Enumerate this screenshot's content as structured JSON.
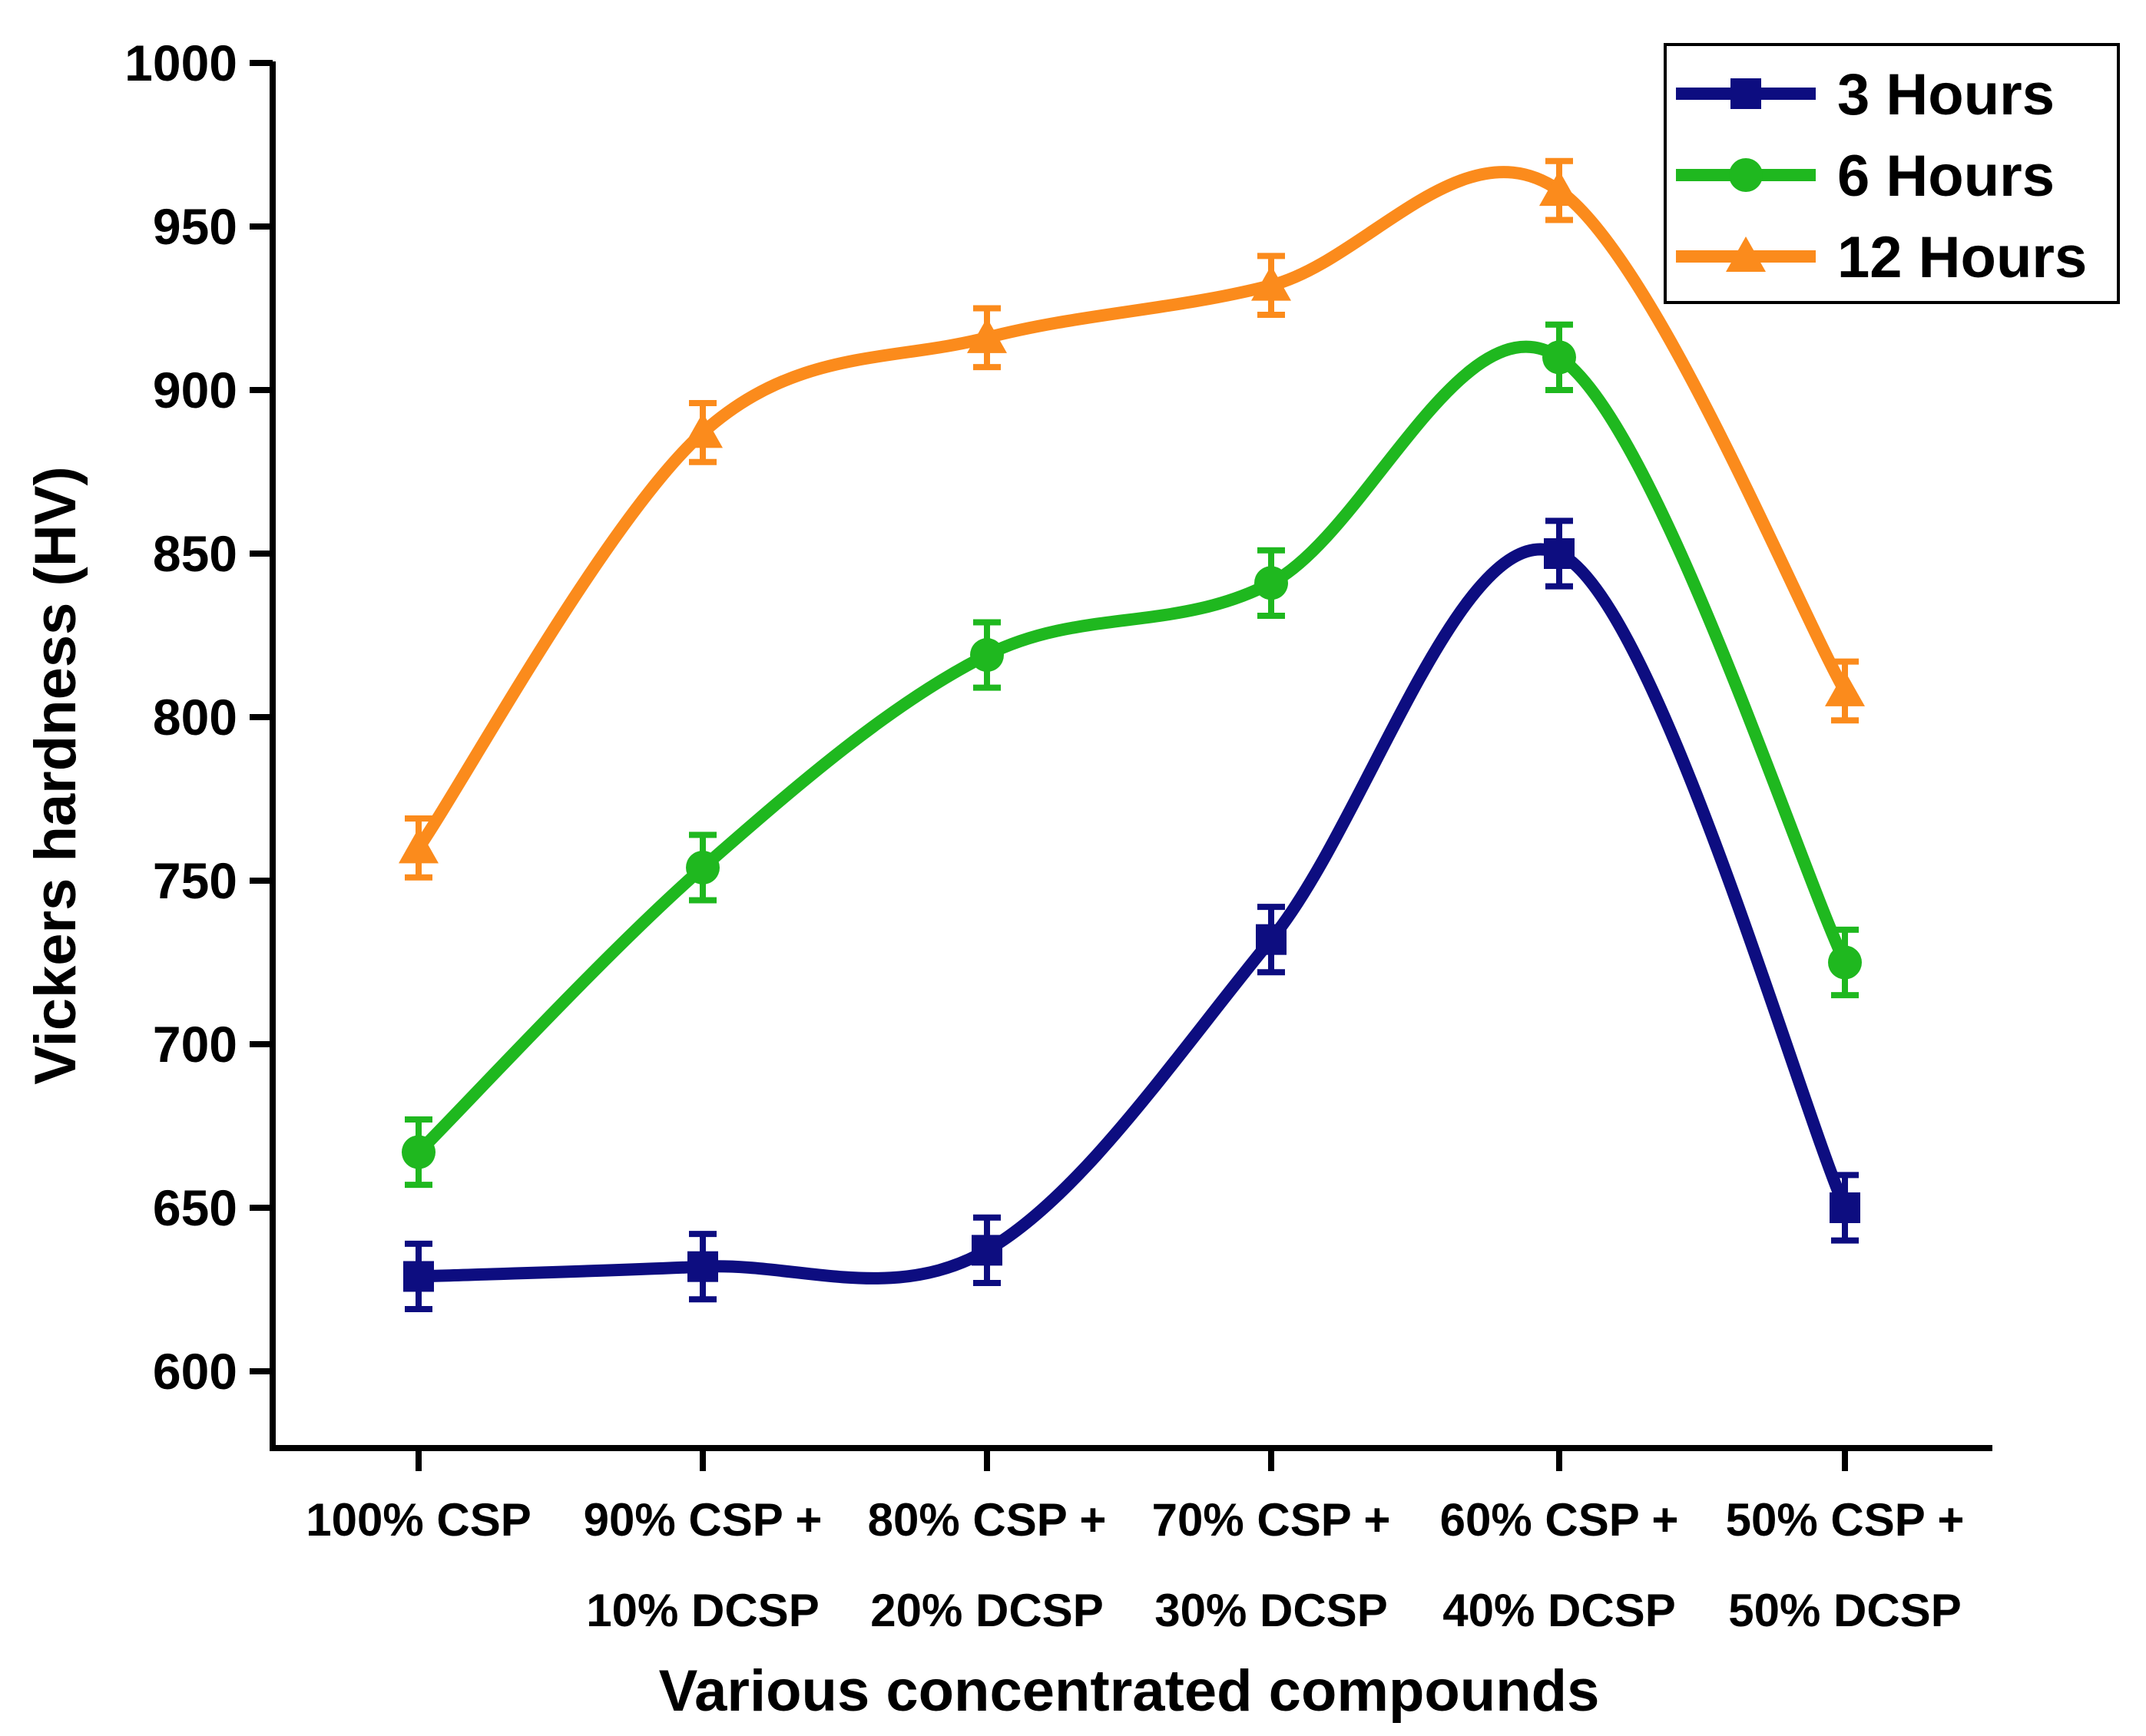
{
  "chart_data": {
    "type": "line",
    "title": "",
    "xlabel": "Various concentrated compounds",
    "ylabel": "Vickers hardness (HV)",
    "ylim": [
      576,
      1000
    ],
    "yticks": [
      600,
      650,
      700,
      750,
      800,
      850,
      900,
      950,
      1000
    ],
    "categories": [
      [
        "100% CSP"
      ],
      [
        "90% CSP +",
        "10% DCSP"
      ],
      [
        "80% CSP +",
        "20% DCSP"
      ],
      [
        "70% CSP +",
        "30% DCSP"
      ],
      [
        "60% CSP +",
        "40% DCSP"
      ],
      [
        "50% CSP +",
        "50% DCSP"
      ]
    ],
    "series": [
      {
        "name": "3 Hours",
        "color": "#0d0d80",
        "marker": "square",
        "values": [
          629,
          632,
          637,
          732,
          850,
          650
        ],
        "error": 10
      },
      {
        "name": "6 Hours",
        "color": "#1fb81f",
        "marker": "circle",
        "values": [
          667,
          754,
          819,
          841,
          910,
          725
        ],
        "error": 10
      },
      {
        "name": "12 Hours",
        "color": "#fb8b1c",
        "marker": "triangle",
        "values": [
          760,
          887,
          916,
          932,
          961,
          808
        ],
        "error": 9
      }
    ],
    "legend_position": "top-right",
    "grid": false
  }
}
